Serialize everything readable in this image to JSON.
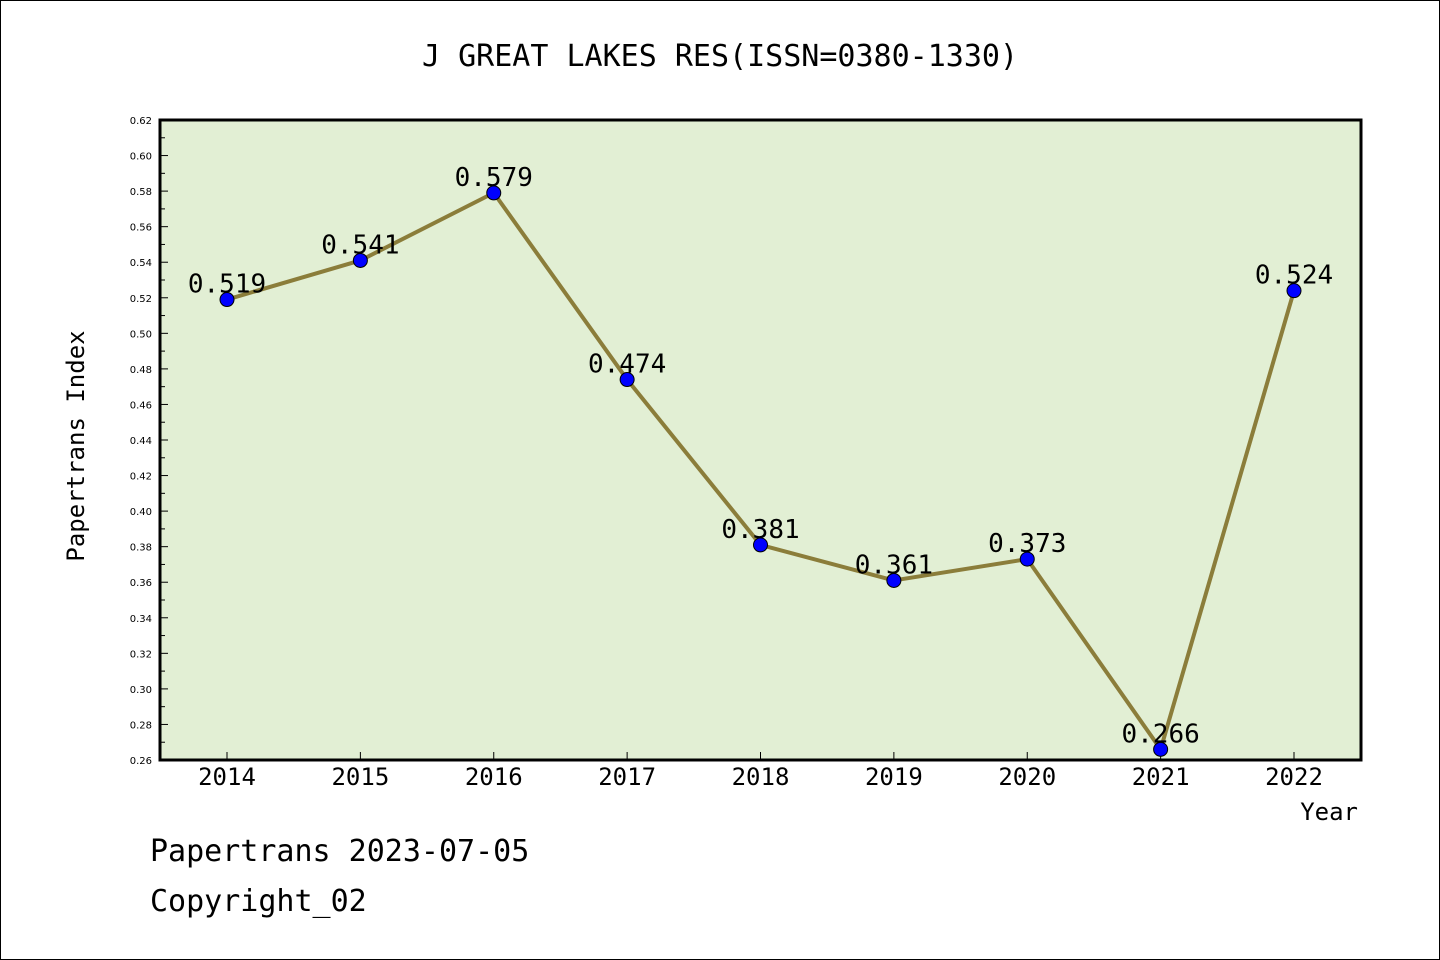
{
  "chart_data": {
    "type": "line",
    "title": "J GREAT LAKES RES(ISSN=0380-1330)",
    "xlabel": "Year",
    "ylabel": "Papertrans Index",
    "x": [
      "2014",
      "2015",
      "2016",
      "2017",
      "2018",
      "2019",
      "2020",
      "2021",
      "2022"
    ],
    "values": [
      0.519,
      0.541,
      0.579,
      0.474,
      0.381,
      0.361,
      0.373,
      0.266,
      0.524
    ],
    "labels": [
      "0.519",
      "0.541",
      "0.579",
      "0.474",
      "0.381",
      "0.361",
      "0.373",
      "0.266",
      "0.524"
    ],
    "ylim": [
      0.26,
      0.62
    ],
    "yticks": [
      "0.26",
      "0.28",
      "0.30",
      "0.32",
      "0.34",
      "0.36",
      "0.38",
      "0.40",
      "0.42",
      "0.44",
      "0.46",
      "0.48",
      "0.50",
      "0.52",
      "0.54",
      "0.56",
      "0.58",
      "0.60",
      "0.62"
    ],
    "grid": false,
    "colors": {
      "plot_background": "#e2efd4",
      "line": "#8b7d3a",
      "marker": "#0000ff"
    }
  },
  "footer": {
    "line1": "Papertrans 2023-07-05",
    "line2": "Copyright_02"
  }
}
